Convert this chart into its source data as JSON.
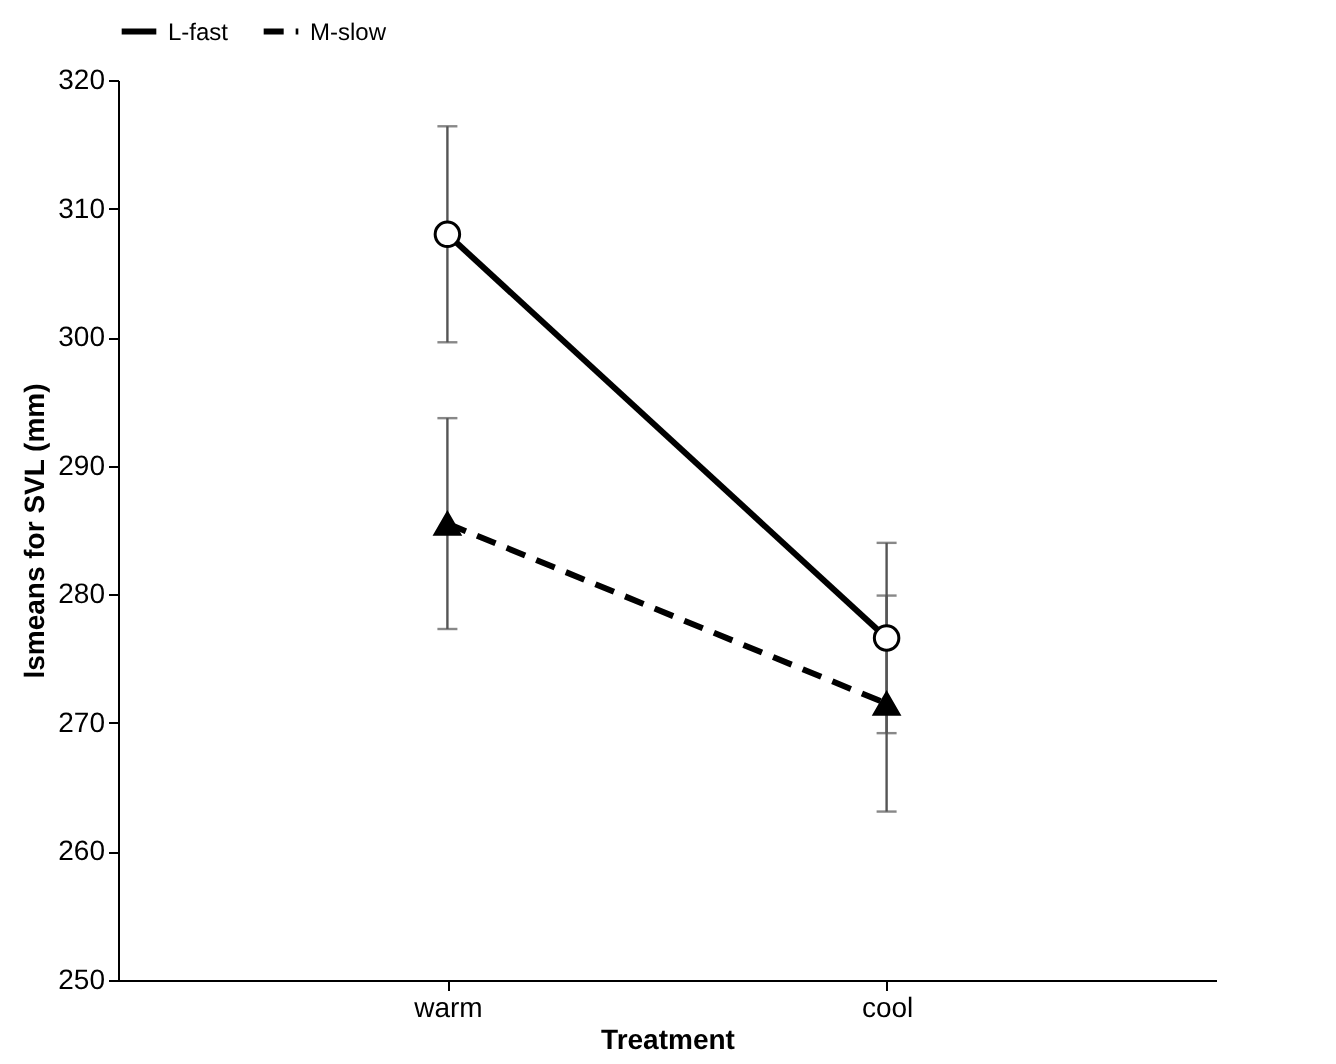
{
  "chart_data": {
    "type": "line",
    "xlabel": "Treatment",
    "ylabel": "lsmeans for SVL (mm)",
    "categories": [
      "warm",
      "cool"
    ],
    "ylim": [
      250,
      320
    ],
    "yticks": [
      250,
      260,
      270,
      280,
      290,
      300,
      310,
      320
    ],
    "grid": false,
    "legend": "top",
    "series": [
      {
        "name": "L-fast",
        "color": "#000000",
        "marker": "circle",
        "line_style": "solid",
        "values": [
          308.0,
          276.6
        ],
        "errors": [
          8.4,
          7.4
        ]
      },
      {
        "name": "M-slow",
        "color": "#000000",
        "marker": "triangle",
        "line_style": "dashed",
        "values": [
          285.5,
          271.5
        ],
        "errors": [
          8.2,
          8.4
        ]
      }
    ]
  }
}
